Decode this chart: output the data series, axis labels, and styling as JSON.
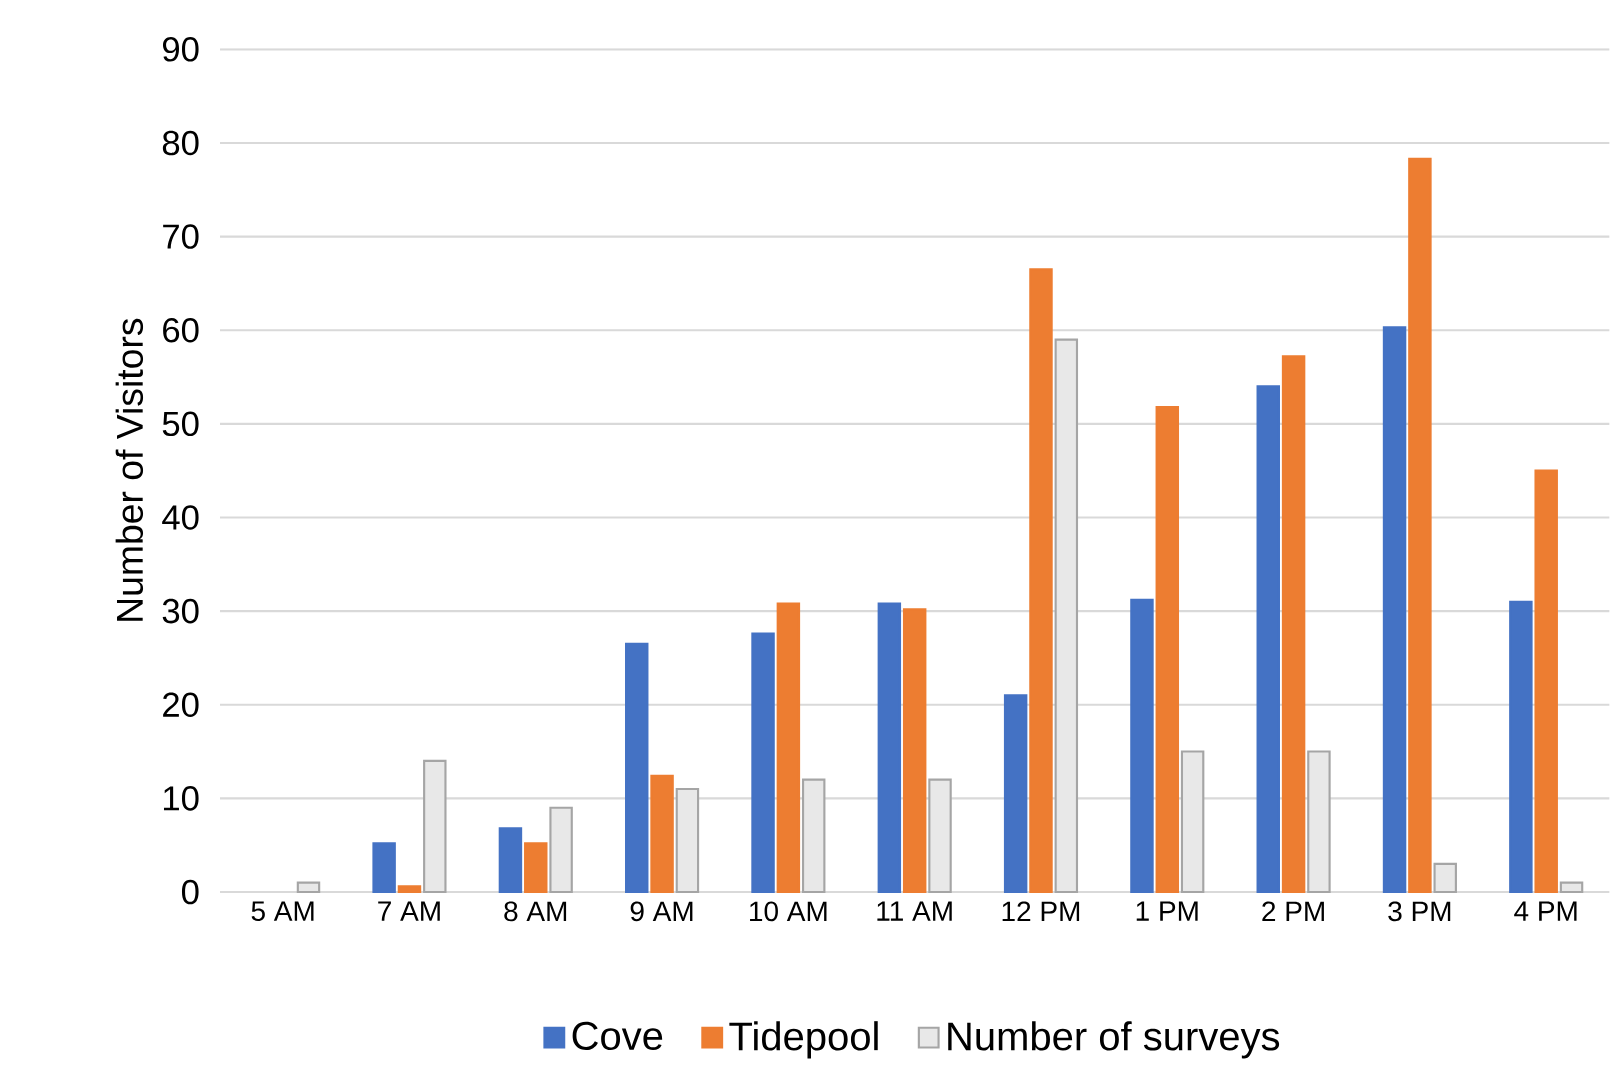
{
  "chart_data": {
    "type": "bar",
    "ylabel": "Number of Visitors",
    "categories": [
      "5 AM",
      "7 AM",
      "8 AM",
      "9 AM",
      "10 AM",
      "11 AM",
      "12 PM",
      "1 PM",
      "2 PM",
      "3 PM",
      "4 PM"
    ],
    "series": [
      {
        "name": "Cove",
        "color": "#4472c4",
        "values": [
          null,
          5.2,
          6.8,
          26.5,
          27.6,
          30.8,
          21,
          31.2,
          54,
          60.3,
          31
        ]
      },
      {
        "name": "Tidepool",
        "color": "#ed7d31",
        "values": [
          null,
          0.6,
          5.2,
          12.4,
          30.8,
          30.2,
          66.5,
          51.8,
          57.2,
          78.3,
          45
        ]
      },
      {
        "name": "Number of surveys",
        "color": "#a5a5a5",
        "values": [
          1,
          14,
          9,
          11,
          12,
          12,
          59,
          15,
          15,
          3,
          1
        ]
      }
    ],
    "ylim": [
      0,
      90
    ],
    "yticks": [
      0,
      10,
      20,
      30,
      40,
      50,
      60,
      70,
      80,
      90
    ],
    "grid": "y",
    "legend": "bottom"
  }
}
